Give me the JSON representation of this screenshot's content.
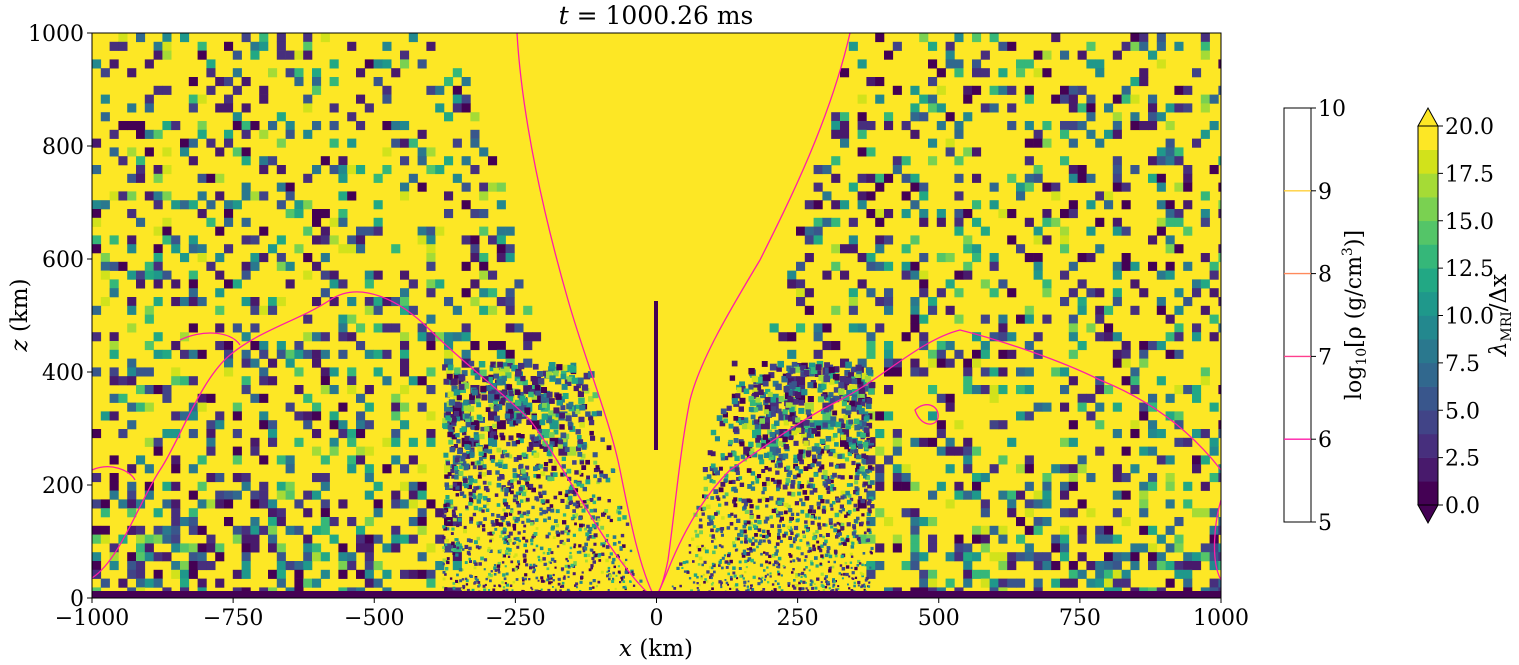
{
  "chart_data": [
    {
      "type": "heatmap",
      "title": "t = 1000.26 ms",
      "xlabel": "x (km)",
      "ylabel": "z (km)",
      "xlim": [
        -1000,
        1000
      ],
      "ylim": [
        0,
        1000
      ],
      "xticks": [
        -1000,
        -750,
        -500,
        -250,
        0,
        250,
        500,
        750,
        1000
      ],
      "yticks": [
        0,
        200,
        400,
        600,
        800,
        1000
      ],
      "grid": false,
      "field": "λ_MRI / Δx",
      "value_range": [
        0,
        20
      ],
      "colormap": "viridis",
      "background_value": 20,
      "description_of_field": "Mostly saturated (≥20, yellow) with filamentary low-value structures concentrated at |x| < 300 km near the equatorial plane and patchy coarser low-value regions at larger radii; a clean high-value funnel along the rotation axis.",
      "axis_bar": {
        "x": 0,
        "z_range": [
          260,
          525
        ],
        "value": 0
      },
      "density_contours": [
        {
          "level": 6,
          "color": "#ff1ca8"
        },
        {
          "level": 7,
          "color": "#ff3f8e"
        },
        {
          "level": 8,
          "color": "#ff8a5c"
        },
        {
          "level": 9,
          "color": "#ffcf3a"
        }
      ]
    },
    {
      "type": "colorbar",
      "label": "log10[ρ (g/cm3)]",
      "range": [
        5,
        10
      ],
      "ticks": [
        5,
        6,
        7,
        8,
        9,
        10
      ],
      "contour_lines": [
        {
          "level": 6,
          "color": "#ff1ca8"
        },
        {
          "level": 7,
          "color": "#ff3f8e"
        },
        {
          "level": 8,
          "color": "#ff8a5c"
        },
        {
          "level": 9,
          "color": "#ffcf3a"
        }
      ]
    },
    {
      "type": "colorbar",
      "label": "λMRI/Δx",
      "range": [
        0,
        20
      ],
      "ticks": [
        0.0,
        2.5,
        5.0,
        7.5,
        10.0,
        12.5,
        15.0,
        17.5,
        20.0
      ],
      "tick_labels": [
        "0.0",
        "2.5",
        "5.0",
        "7.5",
        "10.0",
        "12.5",
        "15.0",
        "17.5",
        "20.0"
      ],
      "extend": "both",
      "colors": [
        "#440154",
        "#481a6c",
        "#472f7d",
        "#414487",
        "#39568c",
        "#31688e",
        "#2a788e",
        "#23888e",
        "#1f988b",
        "#22a884",
        "#35b779",
        "#54c568",
        "#7ad151",
        "#a5db36",
        "#d2e21b",
        "#fde725"
      ]
    }
  ],
  "labels": {
    "title_t": "t",
    "title_rest": " = 1000.26 ms",
    "xlabel_var": "x",
    "xlabel_unit": " (km)",
    "ylabel_var": "z",
    "ylabel_unit": " (km)",
    "xtick_labels": [
      "−1000",
      "−750",
      "−500",
      "−250",
      "0",
      "250",
      "500",
      "750",
      "1000"
    ],
    "ytick_labels": [
      "0",
      "200",
      "400",
      "600",
      "800",
      "1000"
    ],
    "cbar1_tick_labels": [
      "5",
      "6",
      "7",
      "8",
      "9",
      "10"
    ],
    "cbar1_label_log": "log",
    "cbar1_label_sub": "10",
    "cbar1_label_mid": "[ρ (g/cm",
    "cbar1_label_sup": "3",
    "cbar1_label_end": ")]",
    "cbar2_label_lambda": "λ",
    "cbar2_label_sub": "MRI",
    "cbar2_label_end": "/Δx"
  }
}
